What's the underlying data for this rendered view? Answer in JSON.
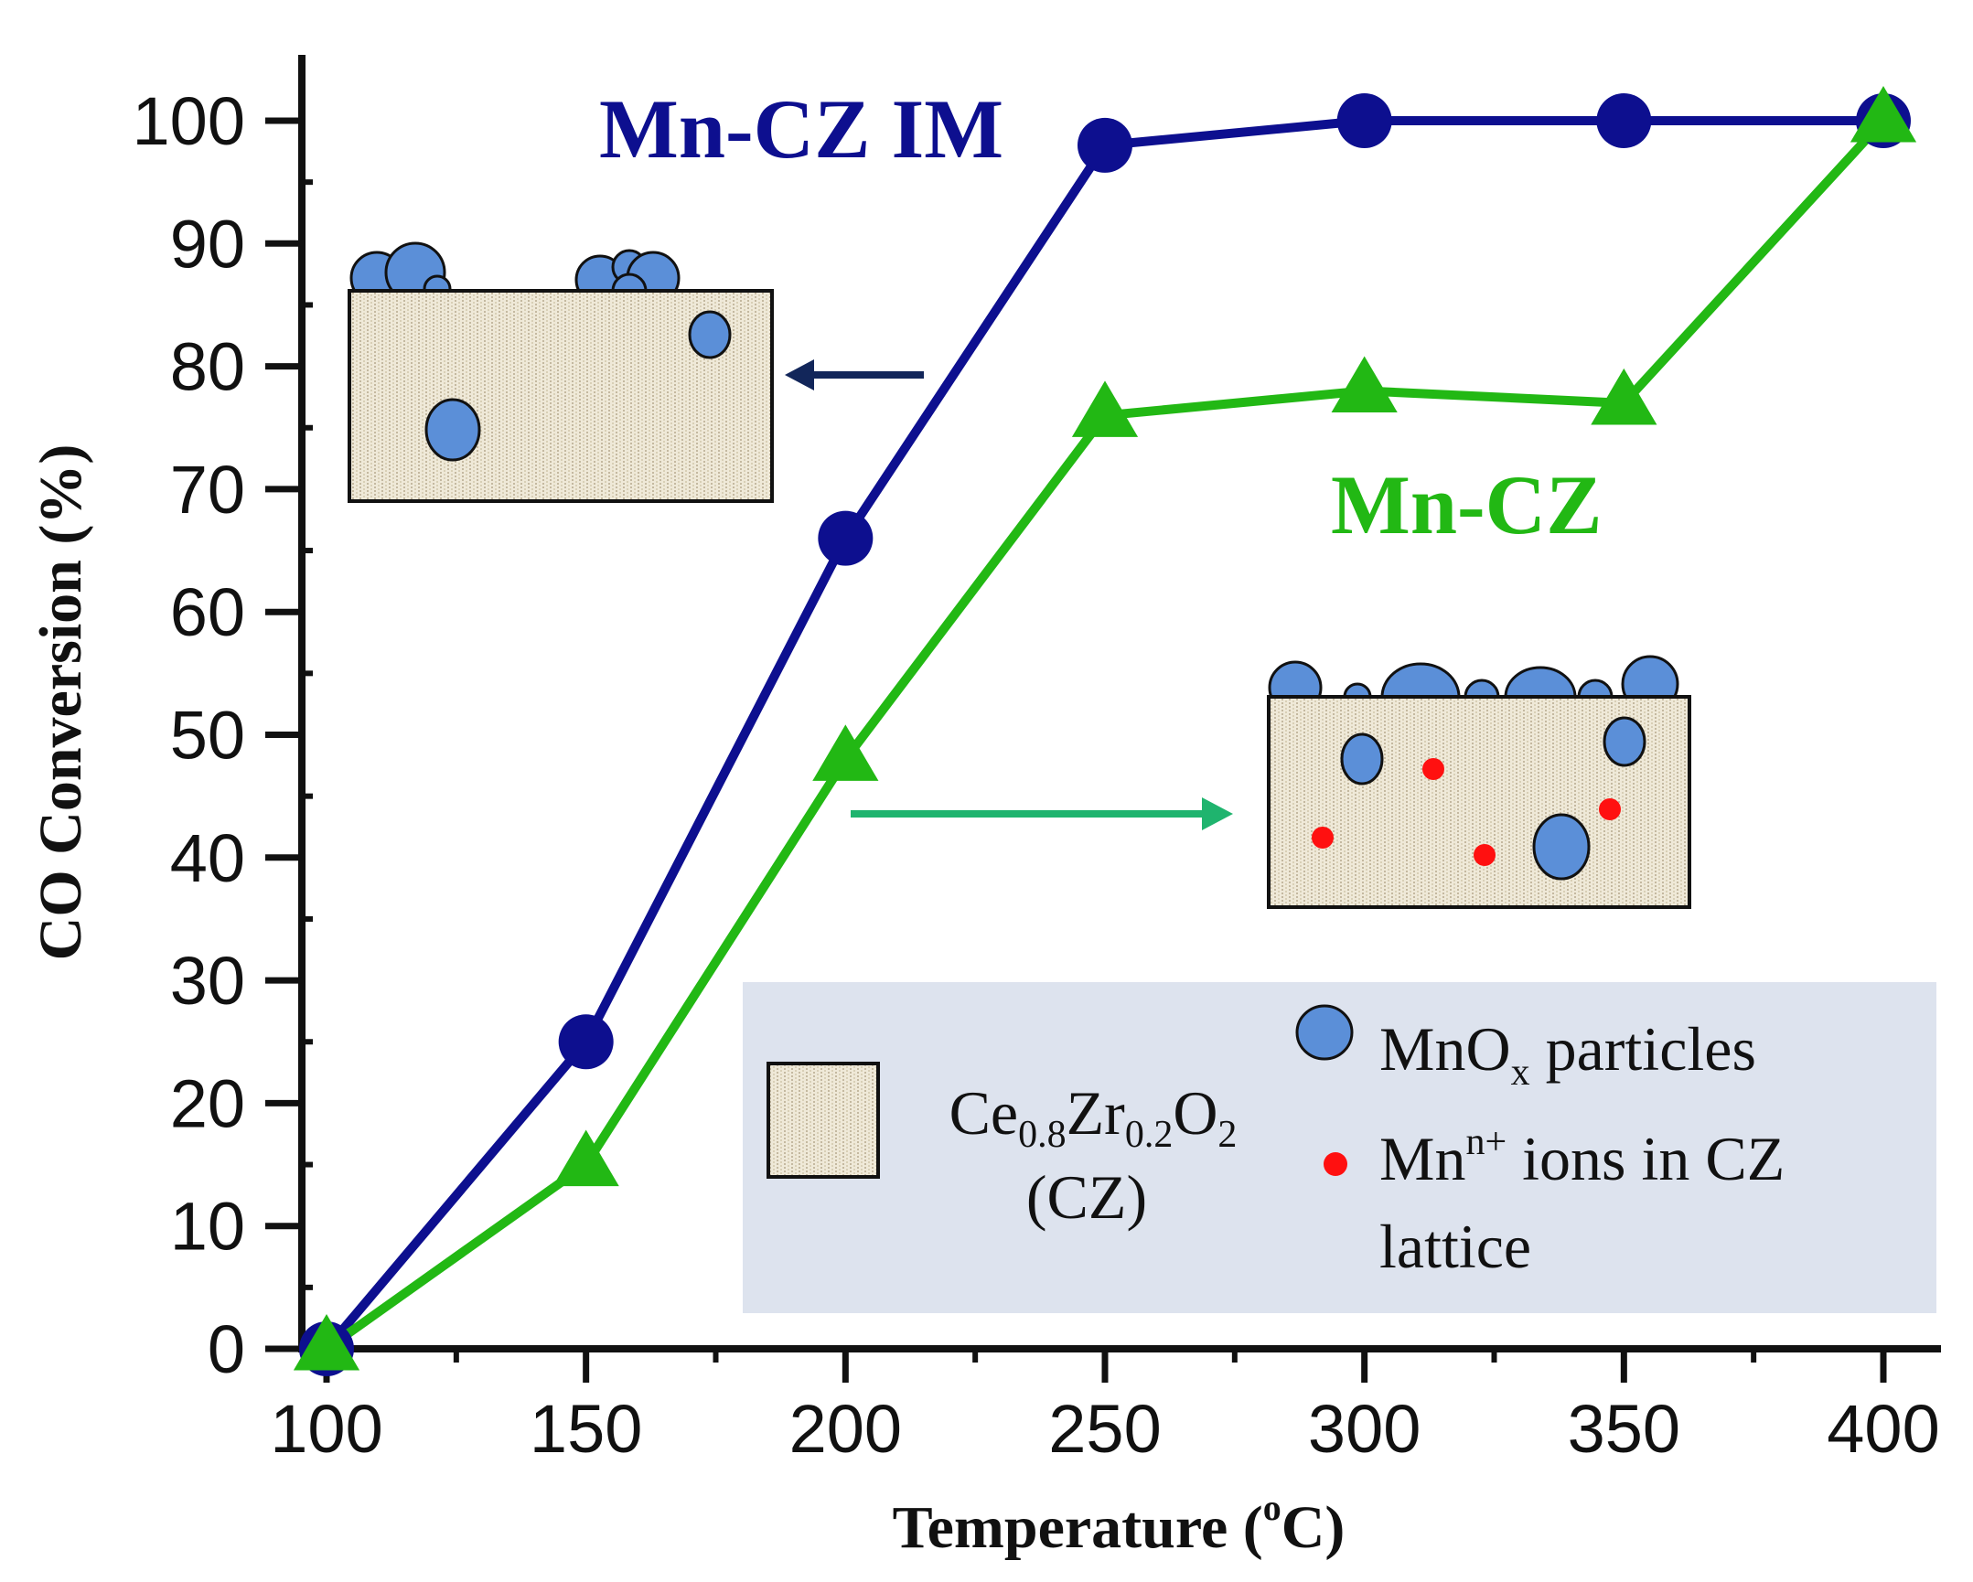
{
  "chart_data": {
    "type": "line",
    "title": "",
    "xlabel": "Temperature (",
    "xlabel_sup": "o",
    "xlabel_unit": "C)",
    "ylabel": "CO Conversion (%)",
    "x": [
      100,
      150,
      200,
      250,
      300,
      350,
      400
    ],
    "xlim": [
      100,
      400
    ],
    "ylim": [
      0,
      100
    ],
    "xticks": [
      "100",
      "150",
      "200",
      "250",
      "300",
      "350",
      "400"
    ],
    "yticks": [
      "0",
      "10",
      "20",
      "30",
      "40",
      "50",
      "60",
      "70",
      "80",
      "90",
      "100"
    ],
    "series": [
      {
        "name": "Mn-CZ IM",
        "marker": "circle",
        "color": "#0d0f8f",
        "values": [
          0,
          25,
          66,
          98,
          100,
          100,
          100
        ]
      },
      {
        "name": "Mn-CZ",
        "marker": "triangle",
        "color": "#22b814",
        "values": [
          0,
          15,
          48,
          76,
          78,
          77,
          100
        ]
      }
    ],
    "legend": {
      "support_label_main": [
        "Ce",
        "Zr",
        "O"
      ],
      "support_label_subs": [
        "0.8",
        "0.2",
        "2"
      ],
      "support_label_abbr": "(CZ)",
      "particles_label": "MnO",
      "particles_sub": "x",
      "particles_suffix": " particles",
      "ions_label": "Mn",
      "ions_sup": "n+",
      "ions_suffix": " ions in CZ",
      "ions_line2": "lattice",
      "colors": {
        "panel": "#dde3ee",
        "particle": "#5b8fd8",
        "ion": "#ff1010",
        "support": "#efe9d8"
      }
    }
  }
}
